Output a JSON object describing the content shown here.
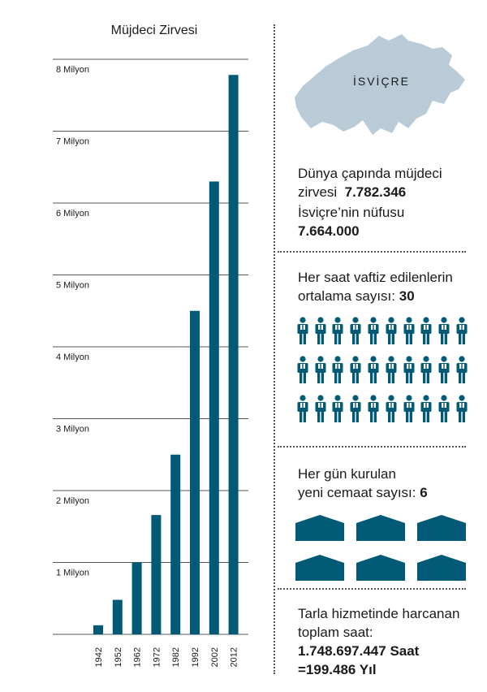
{
  "chart_data": {
    "type": "bar",
    "title": "Müjdeci Zirvesi",
    "categories": [
      "1942",
      "1952",
      "1962",
      "1972",
      "1982",
      "1992",
      "2002",
      "2012"
    ],
    "values": [
      126000,
      480000,
      1000000,
      1660000,
      2500000,
      4500000,
      6300000,
      7782346
    ],
    "ylim": [
      0,
      8000000
    ],
    "yticks": [
      1000000,
      2000000,
      3000000,
      4000000,
      5000000,
      6000000,
      7000000,
      8000000
    ],
    "ytick_labels": [
      "1 Milyon",
      "2 Milyon",
      "3 Milyon",
      "4 Milyon",
      "5 Milyon",
      "6 Milyon",
      "7 Milyon",
      "8 Milyon"
    ],
    "grid": true,
    "bar_color": "#005a75"
  },
  "map": {
    "label": "İSVİÇRE",
    "color": "#b9cbd6"
  },
  "stats": {
    "publishers_label_1": "Dünya çapında müjdeci",
    "publishers_label_2": "zirvesi",
    "publishers_value": "7.782.346",
    "population_label": "İsviçre’nin nüfusu",
    "population_value": "7.664.000",
    "baptized_label_1": "Her saat vaftiz edilenlerin",
    "baptized_label_2": "ortalama sayısı:",
    "baptized_value": "30",
    "baptized_count": 30,
    "congregations_label_1": "Her gün kurulan",
    "congregations_label_2": "yeni cemaat sayısı:",
    "congregations_value": "6",
    "congregations_count": 6,
    "hours_label_1": "Tarla hizmetinde harcanan",
    "hours_label_2": "toplam saat:",
    "hours_value": "1.748.697.447 Saat",
    "years_value": "=199.486 Yıl"
  },
  "colors": {
    "accent": "#005a75",
    "map": "#b9cbd6"
  },
  "icons": {
    "person": "person-icon",
    "house": "kingdom-hall-icon"
  }
}
